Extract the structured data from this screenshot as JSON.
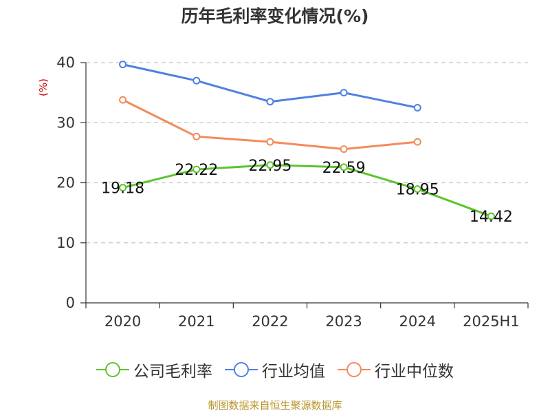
{
  "title": "历年毛利率变化情况(%)",
  "source": "制图数据来自恒生聚源数据库",
  "colors": {
    "company": "#5cc42e",
    "industry_avg": "#4f81e0",
    "industry_median": "#f28b5a",
    "grid": "#c8c8c8",
    "axis": "#333333",
    "ylabel": "#cc0000"
  },
  "chart_data": {
    "type": "line",
    "title": "历年毛利率变化情况(%)",
    "xlabel": "",
    "ylabel": "(%)",
    "categories": [
      "2020",
      "2021",
      "2022",
      "2023",
      "2024",
      "2025H1"
    ],
    "ylim": [
      0,
      40
    ],
    "yticks": [
      0,
      10,
      20,
      30,
      40
    ],
    "grid": true,
    "legend_position": "bottom",
    "series": [
      {
        "name": "公司毛利率",
        "color": "#5cc42e",
        "values": [
          19.18,
          22.22,
          22.95,
          22.59,
          18.95,
          14.42
        ],
        "labels": [
          "19.18",
          "22.22",
          "22.95",
          "22.59",
          "18.95",
          "14.42"
        ]
      },
      {
        "name": "行业均值",
        "color": "#4f81e0",
        "values": [
          39.7,
          37.0,
          33.5,
          35.0,
          32.5,
          null
        ]
      },
      {
        "name": "行业中位数",
        "color": "#f28b5a",
        "values": [
          33.8,
          27.7,
          26.8,
          25.6,
          26.8,
          null
        ]
      }
    ]
  }
}
